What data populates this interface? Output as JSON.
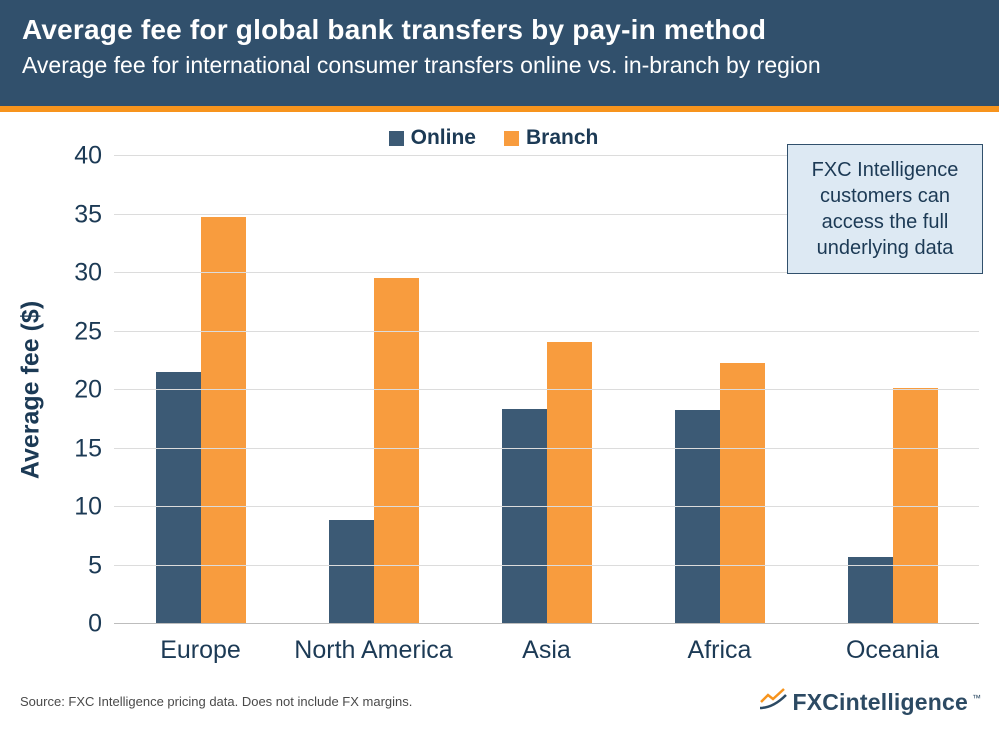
{
  "header": {
    "title": "Average fee for global bank transfers by pay-in method",
    "subtitle": "Average fee for international consumer transfers online vs. in-branch by region"
  },
  "note_box": {
    "text": "FXC Intelligence customers can access the full underlying data"
  },
  "footer": {
    "source": "Source: FXC Intelligence pricing data. Does not include FX margins.",
    "logo_text": "FXCintelligence",
    "logo_tm": "™"
  },
  "colors": {
    "header_bg": "#31506c",
    "accent_orange": "#f7941d",
    "online_bar": "#3c5a75",
    "branch_bar": "#f89c3e",
    "note_bg": "#dde9f3",
    "text_navy": "#1c3a55"
  },
  "chart_data": {
    "type": "bar",
    "categories": [
      "Europe",
      "North America",
      "Asia",
      "Africa",
      "Oceania"
    ],
    "series": [
      {
        "name": "Online",
        "color": "#3c5a75",
        "values": [
          21.5,
          8.9,
          18.4,
          18.3,
          5.7
        ]
      },
      {
        "name": "Branch",
        "color": "#f89c3e",
        "values": [
          34.8,
          29.6,
          24.1,
          22.3,
          20.2
        ]
      }
    ],
    "title": "Average fee for global bank transfers by pay-in method",
    "xlabel": "",
    "ylabel": "Average fee ($)",
    "ylim": [
      0,
      40
    ],
    "ytick_step": 5,
    "grid": true,
    "legend_position": "top"
  }
}
